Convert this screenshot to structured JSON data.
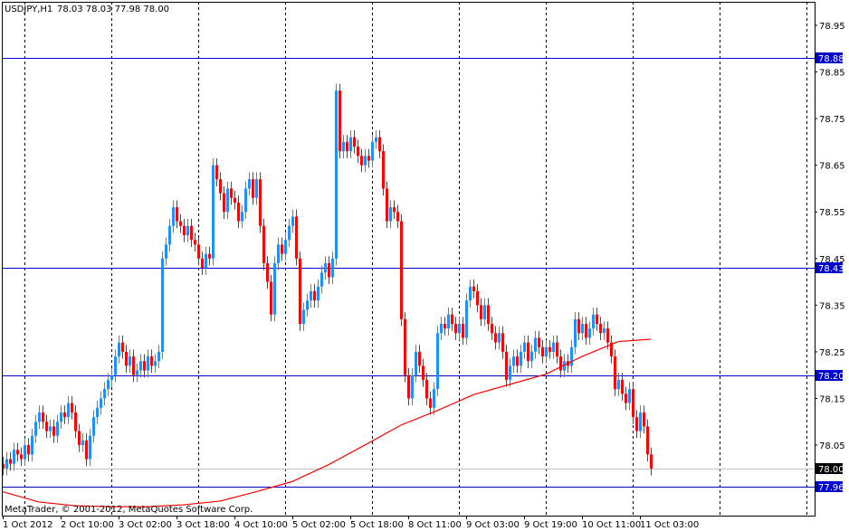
{
  "header": {
    "symbol": "USDJPY,H1",
    "ohlc": "78.03 78.03 77.98 78.00"
  },
  "footer": {
    "copyright": "MetaTrader, © 2001-2012, MetaQuotes Software Corp."
  },
  "colors": {
    "bull": "#1e90ff",
    "bear": "#ff0000",
    "ma": "#ff0000",
    "hline": "#0000cc",
    "bid_line": "#c0c0c0",
    "background": "#ffffff"
  },
  "chart_data": {
    "type": "candlestick",
    "timeframe": "H1",
    "ylim": [
      77.915,
      79.0
    ],
    "grid": "vertical dashed, daily",
    "y_ticks": [
      "78.95",
      "78.85",
      "78.75",
      "78.65",
      "78.55",
      "78.45",
      "78.35",
      "78.25",
      "78.15",
      "78.05"
    ],
    "x_ticks": [
      "1 Oct 2012",
      "2 Oct 10:00",
      "3 Oct 02:00",
      "3 Oct 18:00",
      "4 Oct 10:00",
      "5 Oct 02:00",
      "5 Oct 18:00",
      "8 Oct 11:00",
      "9 Oct 03:00",
      "9 Oct 19:00",
      "10 Oct 11:00",
      "11 Oct 03:00"
    ],
    "closes": [
      78.0,
      78.02,
      78.01,
      78.04,
      78.03,
      78.02,
      78.05,
      78.03,
      78.07,
      78.1,
      78.12,
      78.1,
      78.08,
      78.09,
      78.07,
      78.1,
      78.12,
      78.11,
      78.14,
      78.12,
      78.08,
      78.05,
      78.06,
      78.02,
      78.07,
      78.11,
      78.13,
      78.15,
      78.17,
      78.19,
      78.2,
      78.24,
      78.27,
      78.25,
      78.22,
      78.24,
      78.2,
      78.21,
      78.23,
      78.21,
      78.24,
      78.22,
      78.23,
      78.25,
      78.45,
      78.48,
      78.52,
      78.56,
      78.53,
      78.52,
      78.5,
      78.52,
      78.49,
      78.48,
      78.45,
      78.43,
      78.46,
      78.45,
      78.65,
      78.62,
      78.59,
      78.55,
      78.6,
      78.58,
      78.57,
      78.53,
      78.55,
      78.6,
      78.62,
      78.58,
      78.62,
      78.52,
      78.44,
      78.4,
      78.33,
      78.44,
      78.48,
      78.46,
      78.49,
      78.52,
      78.54,
      78.45,
      78.31,
      78.34,
      78.36,
      78.38,
      78.36,
      78.39,
      78.42,
      78.44,
      78.41,
      78.45,
      78.81,
      78.68,
      78.7,
      78.68,
      78.71,
      78.69,
      78.67,
      78.65,
      78.67,
      78.66,
      78.7,
      78.71,
      78.68,
      78.6,
      78.53,
      78.56,
      78.55,
      78.53,
      78.32,
      78.2,
      78.15,
      78.2,
      78.25,
      78.22,
      78.19,
      78.15,
      78.13,
      78.17,
      78.29,
      78.31,
      78.3,
      78.33,
      78.31,
      78.29,
      78.31,
      78.28,
      78.36,
      78.39,
      78.38,
      78.35,
      78.32,
      78.35,
      78.31,
      78.29,
      78.27,
      78.29,
      78.25,
      78.19,
      78.22,
      78.24,
      78.22,
      78.25,
      78.27,
      78.23,
      78.25,
      78.28,
      78.26,
      78.24,
      78.26,
      78.25,
      78.27,
      78.24,
      78.21,
      78.23,
      78.22,
      78.26,
      78.32,
      78.29,
      78.31,
      78.28,
      78.3,
      78.33,
      78.31,
      78.29,
      78.3,
      78.27,
      78.24,
      78.17,
      78.19,
      78.16,
      78.14,
      78.17,
      78.11,
      78.08,
      78.12,
      78.09,
      78.03,
      78.0
    ],
    "moving_average": [
      [
        0,
        77.95
      ],
      [
        10,
        77.928
      ],
      [
        20,
        77.92
      ],
      [
        30,
        77.918
      ],
      [
        40,
        77.918
      ],
      [
        50,
        77.922
      ],
      [
        60,
        77.93
      ],
      [
        70,
        77.95
      ],
      [
        80,
        77.972
      ],
      [
        90,
        78.008
      ],
      [
        100,
        78.05
      ],
      [
        110,
        78.093
      ],
      [
        120,
        78.124
      ],
      [
        130,
        78.158
      ],
      [
        140,
        78.18
      ],
      [
        150,
        78.202
      ],
      [
        160,
        78.24
      ],
      [
        170,
        78.272
      ],
      [
        179,
        78.277
      ]
    ],
    "horizontal_lines": [
      {
        "price": 78.88,
        "label": "78.88"
      },
      {
        "price": 78.43,
        "label": "78.43"
      },
      {
        "price": 78.2,
        "label": "78.20"
      },
      {
        "price": 77.96,
        "label": "77.96"
      }
    ],
    "bid": {
      "price": 78.0,
      "label": "78.00"
    }
  }
}
